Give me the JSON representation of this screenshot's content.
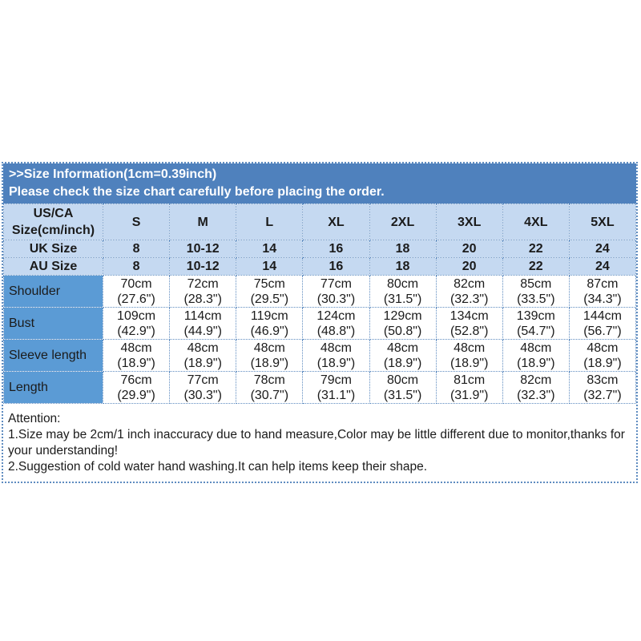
{
  "header": {
    "title": ">>Size Information(1cm=0.39inch)",
    "subtitle": "Please check the size chart carefully before placing the order."
  },
  "size_table": {
    "corner": [
      "US/CA",
      "Size(cm/inch)"
    ],
    "columns": [
      "S",
      "M",
      "L",
      "XL",
      "2XL",
      "3XL",
      "4XL",
      "5XL"
    ],
    "size_rows": [
      {
        "label": "UK Size",
        "values": [
          "8",
          "10-12",
          "14",
          "16",
          "18",
          "20",
          "22",
          "24"
        ]
      },
      {
        "label": "AU Size",
        "values": [
          "8",
          "10-12",
          "14",
          "16",
          "18",
          "20",
          "22",
          "24"
        ]
      }
    ],
    "measurement_rows": [
      {
        "label": "Shoulder",
        "values": [
          [
            "70cm",
            "(27.6\")"
          ],
          [
            "72cm",
            "(28.3\")"
          ],
          [
            "75cm",
            "(29.5\")"
          ],
          [
            "77cm",
            "(30.3\")"
          ],
          [
            "80cm",
            "(31.5\")"
          ],
          [
            "82cm",
            "(32.3\")"
          ],
          [
            "85cm",
            "(33.5\")"
          ],
          [
            "87cm",
            "(34.3\")"
          ]
        ]
      },
      {
        "label": "Bust",
        "values": [
          [
            "109cm",
            "(42.9\")"
          ],
          [
            "114cm",
            "(44.9\")"
          ],
          [
            "119cm",
            "(46.9\")"
          ],
          [
            "124cm",
            "(48.8\")"
          ],
          [
            "129cm",
            "(50.8\")"
          ],
          [
            "134cm",
            "(52.8\")"
          ],
          [
            "139cm",
            "(54.7\")"
          ],
          [
            "144cm",
            "(56.7\")"
          ]
        ]
      },
      {
        "label": "Sleeve length",
        "values": [
          [
            "48cm",
            "(18.9\")"
          ],
          [
            "48cm",
            "(18.9\")"
          ],
          [
            "48cm",
            "(18.9\")"
          ],
          [
            "48cm",
            "(18.9\")"
          ],
          [
            "48cm",
            "(18.9\")"
          ],
          [
            "48cm",
            "(18.9\")"
          ],
          [
            "48cm",
            "(18.9\")"
          ],
          [
            "48cm",
            "(18.9\")"
          ]
        ]
      },
      {
        "label": "Length",
        "values": [
          [
            "76cm",
            "(29.9\")"
          ],
          [
            "77cm",
            "(30.3\")"
          ],
          [
            "78cm",
            "(30.7\")"
          ],
          [
            "79cm",
            "(31.1\")"
          ],
          [
            "80cm",
            "(31.5\")"
          ],
          [
            "81cm",
            "(31.9\")"
          ],
          [
            "82cm",
            "(32.3\")"
          ],
          [
            "83cm",
            "(32.7\")"
          ]
        ]
      }
    ]
  },
  "attention": {
    "heading": "Attention:",
    "lines": [
      "1.Size may be 2cm/1 inch inaccuracy due to hand measure,Color may be little different due to monitor,thanks for your understanding!",
      "2.Suggestion of cold water hand washing.It can help items keep their shape."
    ]
  },
  "colors": {
    "header_bg": "#4f81bd",
    "light_row_bg": "#c5d9f1",
    "label_col_bg": "#5b9bd5",
    "border": "#5f8cc0",
    "text": "#1b1b1b",
    "header_text": "#ffffff"
  }
}
